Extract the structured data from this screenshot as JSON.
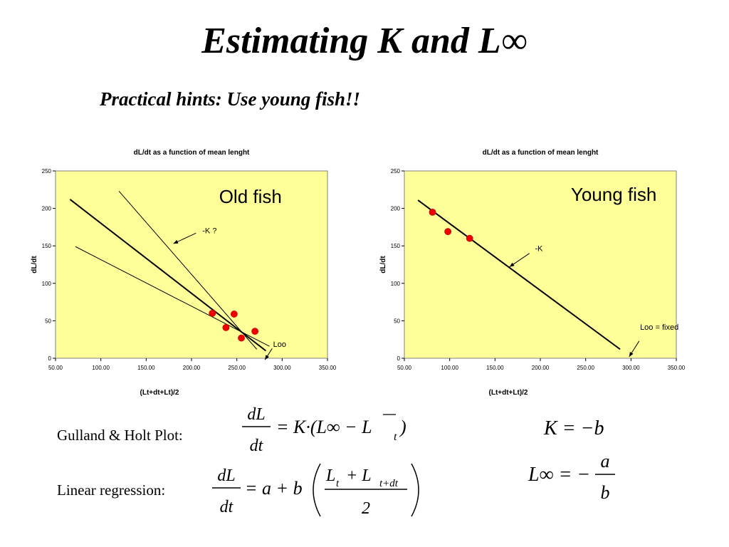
{
  "slide": {
    "title": "Estimating K and L∞",
    "subtitle": "Practical hints: Use young fish!!"
  },
  "chart_data": [
    {
      "type": "scatter",
      "title": "dL/dt as a function of mean lenght",
      "xlabel": "(Lt+dt+Lt)/2",
      "ylabel": "dL/dt",
      "xlim": [
        50,
        350
      ],
      "ylim": [
        0,
        250
      ],
      "x_ticks": [
        "50.00",
        "100.00",
        "150.00",
        "200.00",
        "250.00",
        "300.00",
        "350.00"
      ],
      "y_ticks": [
        "0",
        "50",
        "100",
        "150",
        "200",
        "250"
      ],
      "background": "#ffff99",
      "series": [
        {
          "values": [
            {
              "x": 223,
              "y": 60
            },
            {
              "x": 247,
              "y": 59
            },
            {
              "x": 238,
              "y": 41
            },
            {
              "x": 255,
              "y": 27
            },
            {
              "x": 270,
              "y": 36
            }
          ]
        }
      ],
      "lines": [
        {
          "x1": 66,
          "y1": 212,
          "x2": 282,
          "y2": 10,
          "bold": true
        },
        {
          "x1": 72,
          "y1": 149,
          "x2": 286,
          "y2": 16,
          "bold": false
        },
        {
          "x1": 120,
          "y1": 223,
          "x2": 272,
          "y2": 12,
          "bold": false
        }
      ],
      "annotations": [
        {
          "text": "Old fish",
          "x": 265,
          "y": 207,
          "size": "large"
        },
        {
          "text": "-K ?",
          "x": 212,
          "y": 167,
          "size": "small",
          "arrow": [
            [
              205,
              167
            ],
            [
              180,
              153
            ]
          ]
        },
        {
          "text": "Loo",
          "x": 290,
          "y": 15,
          "size": "small",
          "arrow": [
            [
              289,
              13
            ],
            [
              281,
              -2
            ]
          ]
        }
      ]
    },
    {
      "type": "scatter",
      "title": "dL/dt as a function of mean lenght",
      "xlabel": "(Lt+dt+Lt)/2",
      "ylabel": "dL/dt",
      "xlim": [
        50,
        350
      ],
      "ylim": [
        0,
        250
      ],
      "x_ticks": [
        "50.00",
        "100.00",
        "150.00",
        "200.00",
        "250.00",
        "300.00",
        "350.00"
      ],
      "y_ticks": [
        "0",
        "50",
        "100",
        "150",
        "200",
        "250"
      ],
      "background": "#ffff99",
      "series": [
        {
          "values": [
            {
              "x": 81,
              "y": 195
            },
            {
              "x": 98,
              "y": 169
            },
            {
              "x": 122,
              "y": 160
            }
          ]
        }
      ],
      "lines": [
        {
          "x1": 65,
          "y1": 211,
          "x2": 288,
          "y2": 12,
          "bold": true
        }
      ],
      "annotations": [
        {
          "text": "Young fish",
          "x": 281,
          "y": 210,
          "size": "large"
        },
        {
          "text": "-K",
          "x": 194,
          "y": 143,
          "size": "small",
          "arrow": [
            [
              188,
              140
            ],
            [
              166,
              122
            ]
          ]
        },
        {
          "text": "Loo = fixed",
          "x": 310,
          "y": 38,
          "size": "small",
          "arrow": [
            [
              309,
              23
            ],
            [
              298,
              2
            ]
          ]
        }
      ]
    }
  ],
  "equations": {
    "gulland_label": "Gulland & Holt Plot:",
    "regression_label": "Linear regression:",
    "dL": "dL",
    "dt": "dt",
    "gh_rhs": "= K·(L∞ − L",
    "gh_sub": "t",
    "gh_close": ")",
    "lr_rhs": "= a + b",
    "lr_num_a": "L",
    "lr_num_a_sub": "t",
    "lr_num_plus": "+ L",
    "lr_num_b_sub": "t+dt",
    "lr_den": "2",
    "k_eq": "K = −b",
    "linf_lhs": "L∞ = −",
    "linf_num": "a",
    "linf_den": "b"
  }
}
